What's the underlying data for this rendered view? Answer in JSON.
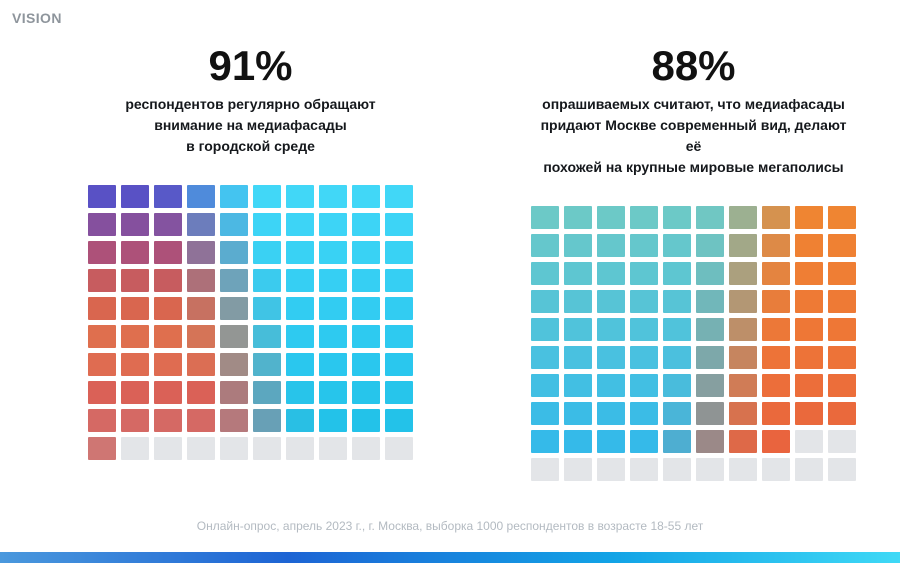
{
  "brand": "VISION",
  "footer": "Онлайн-опрос, апрель 2023 г., г. Москва, выборка 1000 респондентов в возрасте 18-55 лет",
  "panels": [
    {
      "percent": "91%",
      "caption_lines": [
        "респондентов регулярно обращают",
        "внимание на медиафасады",
        "в городской среде"
      ]
    },
    {
      "percent": "88%",
      "caption_lines": [
        "опрашиваемых считают, что медиафасады",
        "придают Москве современный вид, делают её",
        "похожей на крупные мировые мегаполисы"
      ]
    }
  ],
  "chart_data": [
    {
      "type": "waffle",
      "title": "91% респондентов регулярно обращают внимание на медиафасады в городской среде",
      "value": 91,
      "total": 100,
      "rows": 10,
      "cols": 10,
      "filled": 91,
      "empty": 9,
      "fill_order": "left-to-right, top-to-bottom",
      "empty_color": "#e3e5e8",
      "gradient": {
        "left_edge": [
          "#5951c5",
          "#a84f7e",
          "#d6624f",
          "#e2734e",
          "#d95f58",
          "#cf7673"
        ],
        "right_edge": [
          "#41d7f7",
          "#30cbf1",
          "#1fc0e7"
        ],
        "boundary_top": 0.35,
        "boundary_bottom": 0.55,
        "band_width": 0.18
      }
    },
    {
      "type": "waffle",
      "title": "88% опрашиваемых считают, что медиафасады придают Москве современный вид, делают её похожей на крупные мировые мегаполисы",
      "value": 88,
      "total": 100,
      "rows": 10,
      "cols": 10,
      "filled": 88,
      "empty": 12,
      "fill_order": "left-to-right, top-to-bottom",
      "empty_color": "#e3e5e8",
      "gradient": {
        "left_edge": [
          "#6cc9c7",
          "#4cc2de",
          "#2eb8ec"
        ],
        "right_edge": [
          "#ef8532",
          "#ee7537",
          "#e75f40"
        ],
        "boundary_top": 0.7,
        "boundary_bottom": 0.52,
        "band_width": 0.18
      }
    }
  ],
  "bottom_bar": {
    "gradient_stops": [
      "#4a98dd 0%",
      "#1d64d4 32%",
      "#12a3e6 68%",
      "#3fd9f6 100%"
    ]
  },
  "colors": {
    "background": "#ffffff",
    "title_text": "#111111",
    "caption_text": "#15181c",
    "brand_text": "#8e959c",
    "footer_text": "#b3bac1",
    "empty_cell": "#e3e5e8"
  }
}
